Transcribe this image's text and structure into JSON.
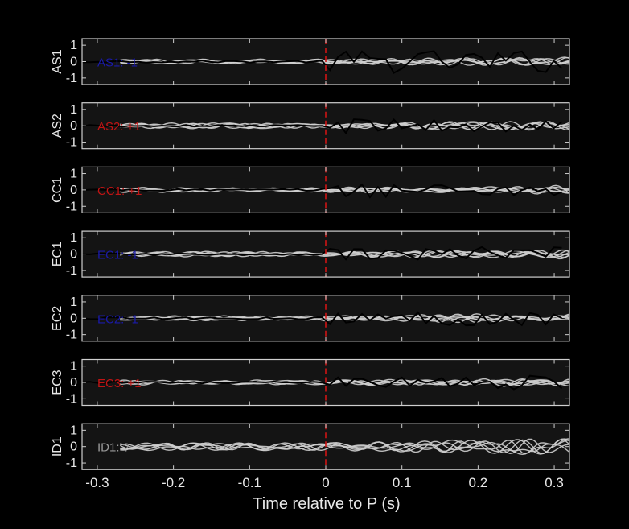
{
  "chart_data": {
    "type": "line",
    "xlabel": "Time relative to P (s)",
    "xlim": [
      -0.32,
      0.32
    ],
    "x_ticks": [
      -0.3,
      -0.2,
      -0.1,
      0,
      0.1,
      0.2,
      0.3
    ],
    "x_tick_labels": [
      "-0.3",
      "-0.2",
      "-0.1",
      "0",
      "0.1",
      "0.2",
      "0.3"
    ],
    "ylim": [
      -1.4,
      1.4
    ],
    "y_ticks": [
      1,
      0,
      -1
    ],
    "y_tick_labels": [
      "1",
      "0",
      "-1"
    ],
    "marker_line_x": 0,
    "colors": {
      "background": "#000000",
      "plot_background": "#141414",
      "axes": "#cfcfcf",
      "waveform": "#000000",
      "ensemble": "#cfcfcf",
      "marker": "#d01414",
      "label_positive": "#c01414",
      "label_negative": "#1a1aa8",
      "label_unknown": "#9a9a9a"
    },
    "panels": [
      {
        "station": "AS1",
        "label": "AS1: -1",
        "polarity": "negative"
      },
      {
        "station": "AS2",
        "label": "AS2: +1",
        "polarity": "positive"
      },
      {
        "station": "CC1",
        "label": "CC1: +1",
        "polarity": "positive"
      },
      {
        "station": "EC1",
        "label": "EC1: -1",
        "polarity": "negative"
      },
      {
        "station": "EC2",
        "label": "EC2: -1",
        "polarity": "negative"
      },
      {
        "station": "EC3",
        "label": "EC3: +1",
        "polarity": "positive"
      },
      {
        "station": "ID1",
        "label": "ID1: ?",
        "polarity": "unknown"
      }
    ]
  }
}
